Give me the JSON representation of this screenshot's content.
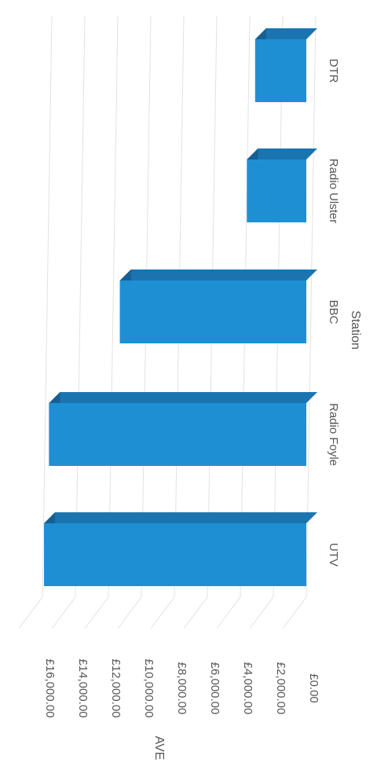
{
  "chart_data": {
    "type": "bar",
    "orientation": "3d-column (rotated 90° clockwise)",
    "title": "",
    "xlabel": "Station",
    "ylabel": "AVE",
    "categories": [
      "UTV",
      "Radio Foyle",
      "BBC",
      "Radio Ulster",
      "DTR"
    ],
    "values": [
      15900,
      15600,
      11300,
      3600,
      3100
    ],
    "ylim": [
      0,
      16000
    ],
    "yticks": [
      "£0.00",
      "£2,000.00",
      "£4,000.00",
      "£6,000.00",
      "£8,000.00",
      "£10,000.00",
      "£12,000.00",
      "£14,000.00",
      "£16,000.00"
    ],
    "ytick_values": [
      0,
      2000,
      4000,
      6000,
      8000,
      10000,
      12000,
      14000,
      16000
    ],
    "grid": true,
    "legend": "none",
    "colors": {
      "bar_front": "#1f8fd4",
      "bar_top": "#1a74b0",
      "bar_side": "#155f94",
      "grid": "#e2e2e2",
      "text": "#555555"
    }
  }
}
